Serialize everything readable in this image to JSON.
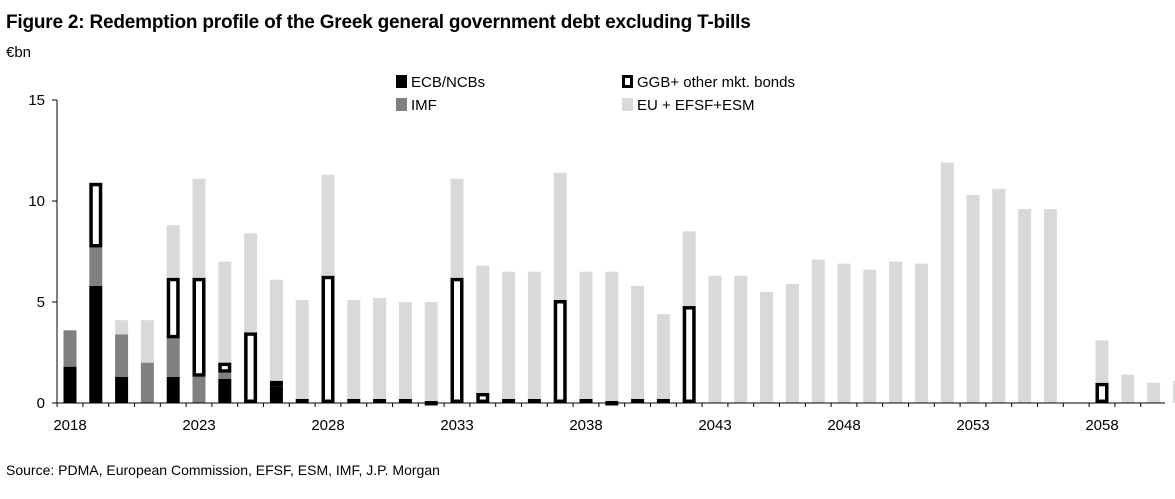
{
  "header": {
    "title": "Figure 2: Redemption profile of the Greek general government debt excluding T-bills",
    "unit": "€bn"
  },
  "footer": {
    "source": "Source: PDMA, European Commission, EFSF, ESM, IMF, J.P. Morgan"
  },
  "colors": {
    "ecb": "#000000",
    "imf": "#808080",
    "ggb_fill": "#ffffff",
    "ggb_stroke": "#000000",
    "eu": "#d9d9d9"
  },
  "chart_data": {
    "type": "bar",
    "stacked": true,
    "title": "Redemption profile of the Greek general government debt excluding T-bills",
    "ylabel": "€bn",
    "xlabel": "",
    "ylim": [
      0,
      15
    ],
    "yticks": [
      "0",
      "5",
      "10",
      "15"
    ],
    "xtick_labels": [
      "2018",
      "2023",
      "2028",
      "2033",
      "2038",
      "2043",
      "2048",
      "2053",
      "2058"
    ],
    "categories": [
      2018,
      2019,
      2020,
      2021,
      2022,
      2023,
      2024,
      2025,
      2026,
      2027,
      2028,
      2029,
      2030,
      2031,
      2032,
      2033,
      2034,
      2035,
      2036,
      2037,
      2038,
      2039,
      2040,
      2041,
      2042,
      2043,
      2044,
      2045,
      2046,
      2047,
      2048,
      2049,
      2050,
      2051,
      2052,
      2053,
      2054,
      2055,
      2056,
      2057,
      2058,
      2059,
      2060,
      2061
    ],
    "series": [
      {
        "key": "ecb",
        "name": "ECB/NCBs",
        "values": [
          1.8,
          5.8,
          1.3,
          0,
          1.3,
          0,
          1.2,
          0,
          0.8,
          0,
          0,
          0,
          0,
          0,
          0,
          0,
          0,
          0,
          0,
          0,
          0,
          0,
          0,
          0,
          0,
          0,
          0,
          0,
          0,
          0,
          0,
          0,
          0,
          0,
          0,
          0,
          0,
          0,
          0,
          0,
          0,
          0,
          0,
          0
        ]
      },
      {
        "key": "imf",
        "name": "IMF",
        "values": [
          1.8,
          1.9,
          2.1,
          2.0,
          1.9,
          1.3,
          0.3,
          0,
          0,
          0,
          0,
          0,
          0,
          0,
          0,
          0,
          0,
          0,
          0,
          0,
          0,
          0,
          0,
          0,
          0,
          0,
          0,
          0,
          0,
          0,
          0,
          0,
          0,
          0,
          0,
          0,
          0,
          0,
          0,
          0,
          0,
          0,
          0,
          0
        ]
      },
      {
        "key": "ggb",
        "name": "GGB+ other mkt. bonds",
        "values": [
          0,
          3.2,
          0,
          0,
          3.0,
          4.9,
          0.5,
          3.5,
          0.3,
          0.2,
          6.3,
          0.2,
          0.2,
          0.2,
          0.1,
          6.2,
          0.5,
          0.2,
          0.2,
          5.1,
          0.2,
          0.1,
          0.2,
          0.2,
          4.8,
          0,
          0,
          0,
          0,
          0,
          0,
          0,
          0,
          0,
          0,
          0,
          0,
          0,
          0,
          0,
          1.0,
          0,
          0,
          0
        ]
      },
      {
        "key": "eu",
        "name": "EU + EFSF+ESM",
        "values": [
          0,
          0,
          0.7,
          2.1,
          2.6,
          4.9,
          5.0,
          4.9,
          5.0,
          4.9,
          5.0,
          4.9,
          5.0,
          4.8,
          4.9,
          4.9,
          6.3,
          6.3,
          6.3,
          6.3,
          6.3,
          6.4,
          5.6,
          4.2,
          3.7,
          6.3,
          6.3,
          5.5,
          5.9,
          7.1,
          6.9,
          6.6,
          7.0,
          6.9,
          11.9,
          10.3,
          10.6,
          9.6,
          9.6,
          0,
          2.1,
          1.4,
          1.0,
          1.1
        ]
      }
    ],
    "legend": {
      "placement": "top-center",
      "entries": [
        "ECB/NCBs",
        "IMF",
        "GGB+ other mkt. bonds",
        "EU + EFSF+ESM"
      ]
    }
  }
}
